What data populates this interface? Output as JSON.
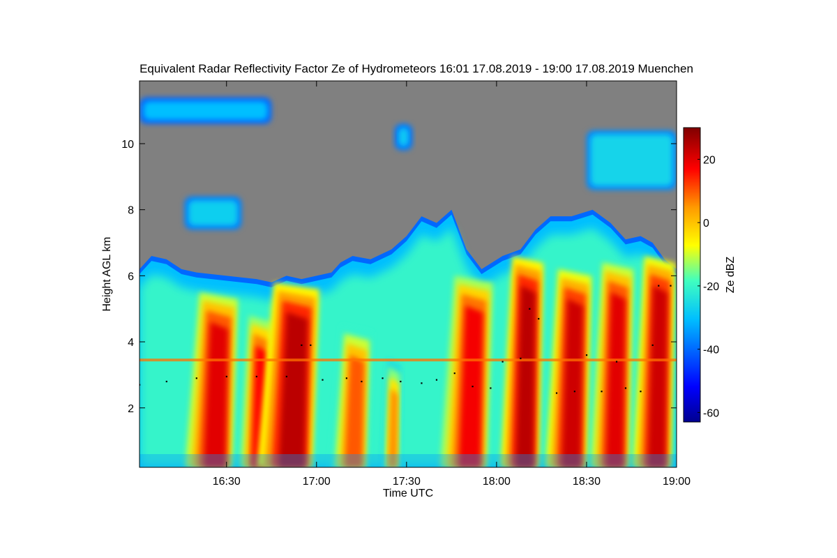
{
  "chart_data": {
    "type": "heatmap",
    "title": "Equivalent Radar Reflectivity Factor Ze of Hydrometeors   16:01 17.08.2019 - 19:00 17.08.2019 Muenchen",
    "xlabel": "Time UTC",
    "ylabel": "Height AGL km",
    "x_unit": "minutes since 16:00 UTC",
    "xlim": [
      1,
      180
    ],
    "xticks": [
      {
        "value": 30,
        "label": "16:30"
      },
      {
        "value": 60,
        "label": "17:00"
      },
      {
        "value": 90,
        "label": "17:30"
      },
      {
        "value": 120,
        "label": "18:00"
      },
      {
        "value": 150,
        "label": "18:30"
      },
      {
        "value": 180,
        "label": "19:00"
      }
    ],
    "ylim": [
      0.2,
      11.9
    ],
    "yticks": [
      {
        "value": 2,
        "label": "2"
      },
      {
        "value": 4,
        "label": "4"
      },
      {
        "value": 6,
        "label": "6"
      },
      {
        "value": 8,
        "label": "8"
      },
      {
        "value": 10,
        "label": "10"
      }
    ],
    "colorbar": {
      "label": "Ze dBZ",
      "range": [
        -63,
        30
      ],
      "ticks": [
        {
          "value": -60,
          "label": "-60"
        },
        {
          "value": -40,
          "label": "-40"
        },
        {
          "value": -20,
          "label": "-20"
        },
        {
          "value": 0,
          "label": "0"
        },
        {
          "value": 20,
          "label": "20"
        }
      ]
    },
    "background_color": "#808080",
    "melting_layer_km": 3.45,
    "cloud_top_km": [
      {
        "t": 1,
        "h": 6.2
      },
      {
        "t": 5,
        "h": 6.6
      },
      {
        "t": 10,
        "h": 6.5
      },
      {
        "t": 15,
        "h": 6.2
      },
      {
        "t": 20,
        "h": 6.1
      },
      {
        "t": 30,
        "h": 6.0
      },
      {
        "t": 40,
        "h": 5.9
      },
      {
        "t": 45,
        "h": 5.8
      },
      {
        "t": 50,
        "h": 6.0
      },
      {
        "t": 55,
        "h": 5.9
      },
      {
        "t": 60,
        "h": 6.0
      },
      {
        "t": 65,
        "h": 6.1
      },
      {
        "t": 68,
        "h": 6.4
      },
      {
        "t": 72,
        "h": 6.6
      },
      {
        "t": 78,
        "h": 6.5
      },
      {
        "t": 85,
        "h": 6.8
      },
      {
        "t": 90,
        "h": 7.2
      },
      {
        "t": 95,
        "h": 7.8
      },
      {
        "t": 100,
        "h": 7.6
      },
      {
        "t": 105,
        "h": 8.0
      },
      {
        "t": 110,
        "h": 6.8
      },
      {
        "t": 115,
        "h": 6.2
      },
      {
        "t": 122,
        "h": 6.6
      },
      {
        "t": 128,
        "h": 6.8
      },
      {
        "t": 133,
        "h": 7.4
      },
      {
        "t": 138,
        "h": 7.8
      },
      {
        "t": 145,
        "h": 7.8
      },
      {
        "t": 152,
        "h": 8.0
      },
      {
        "t": 158,
        "h": 7.6
      },
      {
        "t": 163,
        "h": 7.1
      },
      {
        "t": 168,
        "h": 7.2
      },
      {
        "t": 172,
        "h": 7.0
      },
      {
        "t": 176,
        "h": 6.5
      },
      {
        "t": 180,
        "h": 6.2
      }
    ],
    "cells": [
      {
        "t_start": 17,
        "t_end": 33,
        "top_km": 5.5,
        "max_dbz": 20
      },
      {
        "t_start": 35,
        "t_end": 45,
        "top_km": 4.8,
        "max_dbz": 17
      },
      {
        "t_start": 41,
        "t_end": 60,
        "top_km": 5.8,
        "max_dbz": 24
      },
      {
        "t_start": 65,
        "t_end": 78,
        "top_km": 4.5,
        "max_dbz": 10
      },
      {
        "t_start": 82,
        "t_end": 88,
        "top_km": 3.5,
        "max_dbz": 6
      },
      {
        "t_start": 102,
        "t_end": 118,
        "top_km": 6.0,
        "max_dbz": 18
      },
      {
        "t_start": 122,
        "t_end": 135,
        "top_km": 6.6,
        "max_dbz": 24
      },
      {
        "t_start": 137,
        "t_end": 151,
        "top_km": 6.2,
        "max_dbz": 22
      },
      {
        "t_start": 152,
        "t_end": 165,
        "top_km": 6.4,
        "max_dbz": 20
      },
      {
        "t_start": 166,
        "t_end": 179,
        "top_km": 6.6,
        "max_dbz": 22
      }
    ],
    "upper_cloud_patches": [
      {
        "t_start": 1,
        "t_end": 45,
        "bottom_km": 10.6,
        "top_km": 11.4,
        "dbz": -30
      },
      {
        "t_start": 16,
        "t_end": 35,
        "bottom_km": 7.4,
        "top_km": 8.4,
        "dbz": -27
      },
      {
        "t_start": 86,
        "t_end": 92,
        "bottom_km": 9.8,
        "top_km": 10.6,
        "dbz": -28
      },
      {
        "t_start": 150,
        "t_end": 180,
        "bottom_km": 8.6,
        "top_km": 10.4,
        "dbz": -26
      }
    ],
    "cloud_base_points": [
      {
        "t": 1,
        "h": 2.7
      },
      {
        "t": 10,
        "h": 2.8
      },
      {
        "t": 20,
        "h": 2.9
      },
      {
        "t": 30,
        "h": 2.95
      },
      {
        "t": 40,
        "h": 2.95
      },
      {
        "t": 50,
        "h": 2.95
      },
      {
        "t": 55,
        "h": 3.9
      },
      {
        "t": 58,
        "h": 3.9
      },
      {
        "t": 62,
        "h": 2.85
      },
      {
        "t": 70,
        "h": 2.9
      },
      {
        "t": 75,
        "h": 2.8
      },
      {
        "t": 82,
        "h": 2.9
      },
      {
        "t": 88,
        "h": 2.8
      },
      {
        "t": 95,
        "h": 2.75
      },
      {
        "t": 100,
        "h": 2.85
      },
      {
        "t": 106,
        "h": 3.05
      },
      {
        "t": 112,
        "h": 2.65
      },
      {
        "t": 118,
        "h": 2.6
      },
      {
        "t": 122,
        "h": 3.4
      },
      {
        "t": 128,
        "h": 3.5
      },
      {
        "t": 131,
        "h": 5.0
      },
      {
        "t": 134,
        "h": 4.7
      },
      {
        "t": 140,
        "h": 2.45
      },
      {
        "t": 146,
        "h": 2.5
      },
      {
        "t": 150,
        "h": 3.6
      },
      {
        "t": 155,
        "h": 2.5
      },
      {
        "t": 160,
        "h": 3.4
      },
      {
        "t": 163,
        "h": 2.6
      },
      {
        "t": 168,
        "h": 2.5
      },
      {
        "t": 172,
        "h": 3.9
      },
      {
        "t": 174,
        "h": 5.7
      },
      {
        "t": 178,
        "h": 5.7
      }
    ]
  }
}
